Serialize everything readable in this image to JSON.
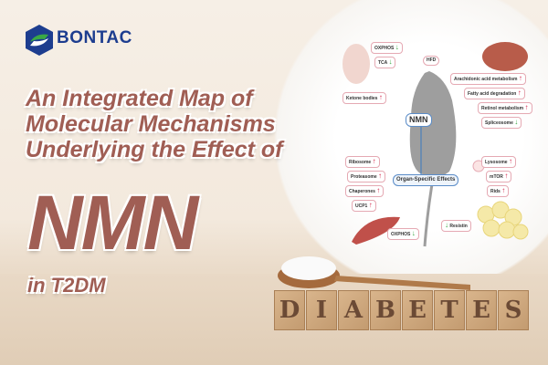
{
  "brand": {
    "name": "BONTAC",
    "colors": {
      "blue": "#1d3d8f",
      "green": "#3aa845"
    }
  },
  "headline": {
    "line1": "An Integrated Map of",
    "line2": "Molecular Mechanisms",
    "line3": "Underlying the Effect of",
    "big": "NMN",
    "line4": "in T2DM",
    "color": "#a05e54"
  },
  "blocks": [
    "D",
    "I",
    "A",
    "B",
    "E",
    "T",
    "E",
    "S"
  ],
  "diagram": {
    "center": "NMN",
    "hub": "Organ-Specific Effects",
    "diet": "HFD",
    "brain": [
      {
        "label": "OXPHOS",
        "dir": "down"
      },
      {
        "label": "TCA",
        "dir": "down"
      },
      {
        "label": "Ketone bodies",
        "dir": "up"
      }
    ],
    "liver": [
      {
        "label": "Arachidonic acid metabolism",
        "dir": "up"
      },
      {
        "label": "Fatty acid degradation",
        "dir": "up"
      },
      {
        "label": "Retinol metabolism",
        "dir": "up"
      },
      {
        "label": "Spliceosome",
        "dir": "down"
      }
    ],
    "muscle": [
      {
        "label": "Ribosome",
        "dir": "up"
      },
      {
        "label": "Proteasome",
        "dir": "up"
      },
      {
        "label": "Chaperones",
        "dir": "up"
      },
      {
        "label": "UCP1",
        "dir": "up"
      },
      {
        "label": "OXPHOS",
        "dir": "down"
      }
    ],
    "adipose": [
      {
        "label": "Lysosome",
        "dir": "up"
      },
      {
        "label": "mTOR",
        "dir": "up"
      },
      {
        "label": "Rids",
        "dir": "up"
      },
      {
        "label": "Resistin",
        "dir": "down"
      }
    ],
    "arrows": {
      "up": "↑",
      "down": "↓"
    }
  }
}
